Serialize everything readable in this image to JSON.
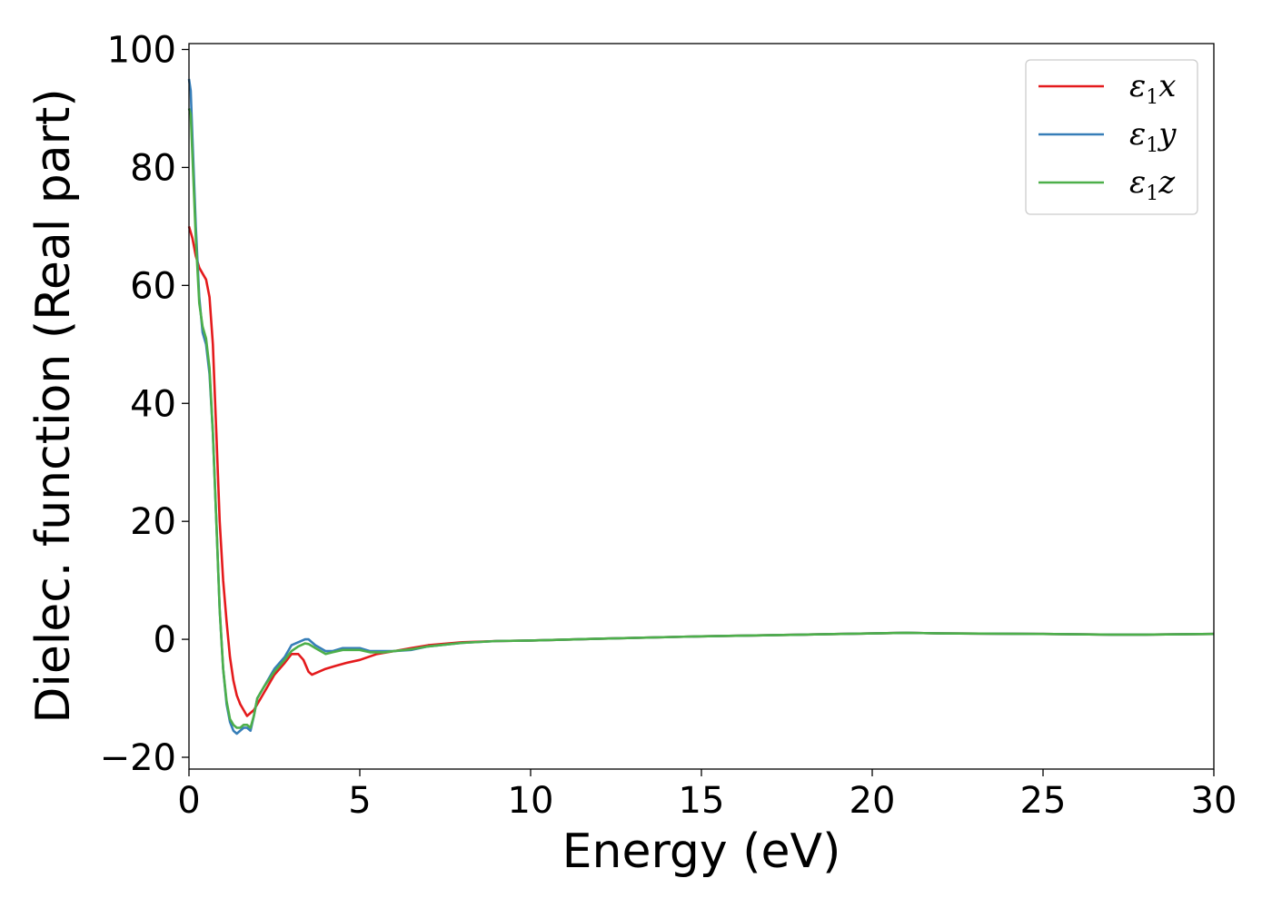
{
  "chart_data": {
    "type": "line",
    "title": "",
    "xlabel": "Energy (eV)",
    "ylabel": "Dielec. function (Real part)",
    "xlim": [
      0,
      30
    ],
    "ylim": [
      -22,
      101
    ],
    "x_ticks": [
      0,
      5,
      10,
      15,
      20,
      25,
      30
    ],
    "x_tick_labels": [
      "0",
      "5",
      "10",
      "15",
      "20",
      "25",
      "30"
    ],
    "y_ticks": [
      -20,
      0,
      20,
      40,
      60,
      80,
      100
    ],
    "y_tick_labels": [
      "−20",
      "0",
      "20",
      "40",
      "60",
      "80",
      "100"
    ],
    "grid": false,
    "legend_position": "top-right",
    "series": [
      {
        "name": "ε₁x",
        "legend_main": "ε",
        "legend_sub": "1",
        "legend_tail": "x",
        "color": "#e41a1c",
        "x": [
          0,
          0.1,
          0.2,
          0.3,
          0.4,
          0.5,
          0.6,
          0.7,
          0.8,
          0.9,
          1.0,
          1.1,
          1.2,
          1.3,
          1.4,
          1.5,
          1.7,
          1.9,
          2.1,
          2.3,
          2.5,
          2.8,
          3.0,
          3.2,
          3.35,
          3.5,
          3.6,
          3.8,
          4.0,
          4.3,
          4.6,
          5.0,
          5.5,
          6.0,
          6.5,
          7.0,
          8.0,
          9.0,
          10.0,
          12.0,
          15.0,
          18.0,
          21.0,
          22.0,
          25.0,
          27.0,
          28.0,
          30.0
        ],
        "y": [
          70,
          68,
          65,
          63,
          62,
          61,
          58,
          50,
          35,
          20,
          10,
          3,
          -3,
          -7,
          -9.5,
          -11,
          -13,
          -12,
          -10,
          -8,
          -6,
          -4,
          -2.5,
          -2.5,
          -3.5,
          -5.5,
          -6,
          -5.5,
          -5,
          -4.5,
          -4,
          -3.5,
          -2.5,
          -2,
          -1.5,
          -1,
          -0.5,
          -0.3,
          -0.2,
          0.1,
          0.5,
          0.8,
          1.1,
          1.0,
          0.9,
          0.8,
          0.8,
          0.9
        ]
      },
      {
        "name": "ε₁y",
        "legend_main": "ε",
        "legend_sub": "1",
        "legend_tail": "y",
        "color": "#377eb8",
        "x": [
          0,
          0.05,
          0.1,
          0.2,
          0.3,
          0.4,
          0.5,
          0.6,
          0.7,
          0.8,
          0.9,
          1.0,
          1.1,
          1.2,
          1.3,
          1.4,
          1.5,
          1.6,
          1.7,
          1.8,
          1.9,
          2.0,
          2.2,
          2.5,
          2.8,
          3.0,
          3.2,
          3.4,
          3.5,
          3.7,
          4.0,
          4.2,
          4.5,
          5.0,
          5.3,
          5.7,
          6.0,
          6.5,
          7.0,
          8.0,
          9.0,
          10.0,
          12.0,
          15.0,
          18.0,
          21.0,
          22.0,
          25.0,
          27.0,
          28.0,
          30.0
        ],
        "y": [
          95,
          93,
          85,
          70,
          58,
          52,
          50,
          45,
          35,
          20,
          5,
          -5,
          -11,
          -14,
          -15.5,
          -16,
          -15.5,
          -15,
          -15,
          -15.5,
          -13,
          -10,
          -8,
          -5,
          -3,
          -1,
          -0.5,
          0,
          0,
          -1,
          -2,
          -2,
          -1.5,
          -1.5,
          -2,
          -2,
          -2,
          -1.8,
          -1.2,
          -0.6,
          -0.3,
          -0.2,
          0.1,
          0.5,
          0.8,
          1.1,
          1.0,
          0.9,
          0.8,
          0.8,
          0.9
        ]
      },
      {
        "name": "ε₁z",
        "legend_main": "ε",
        "legend_sub": "1",
        "legend_tail": "z",
        "color": "#4daf4a",
        "x": [
          0,
          0.05,
          0.1,
          0.2,
          0.3,
          0.4,
          0.5,
          0.6,
          0.7,
          0.8,
          0.9,
          1.0,
          1.1,
          1.2,
          1.3,
          1.4,
          1.5,
          1.6,
          1.7,
          1.8,
          1.9,
          2.0,
          2.2,
          2.5,
          2.8,
          3.0,
          3.2,
          3.4,
          3.5,
          3.7,
          4.0,
          4.2,
          4.5,
          5.0,
          5.3,
          5.7,
          6.0,
          6.5,
          7.0,
          8.0,
          9.0,
          10.0,
          12.0,
          15.0,
          18.0,
          21.0,
          22.0,
          25.0,
          27.0,
          28.0,
          30.0
        ],
        "y": [
          90,
          89,
          82,
          68,
          57,
          53,
          51,
          46,
          35,
          20,
          5,
          -5,
          -10.5,
          -13.5,
          -14.5,
          -15,
          -15,
          -14.5,
          -14.5,
          -15,
          -13,
          -10,
          -8,
          -5.5,
          -3.5,
          -2,
          -1.2,
          -0.7,
          -0.8,
          -1.5,
          -2.5,
          -2.2,
          -1.8,
          -1.8,
          -2.2,
          -2.2,
          -2.0,
          -1.7,
          -1.2,
          -0.6,
          -0.3,
          -0.2,
          0.1,
          0.5,
          0.8,
          1.1,
          1.0,
          0.9,
          0.8,
          0.8,
          0.9
        ]
      }
    ]
  }
}
